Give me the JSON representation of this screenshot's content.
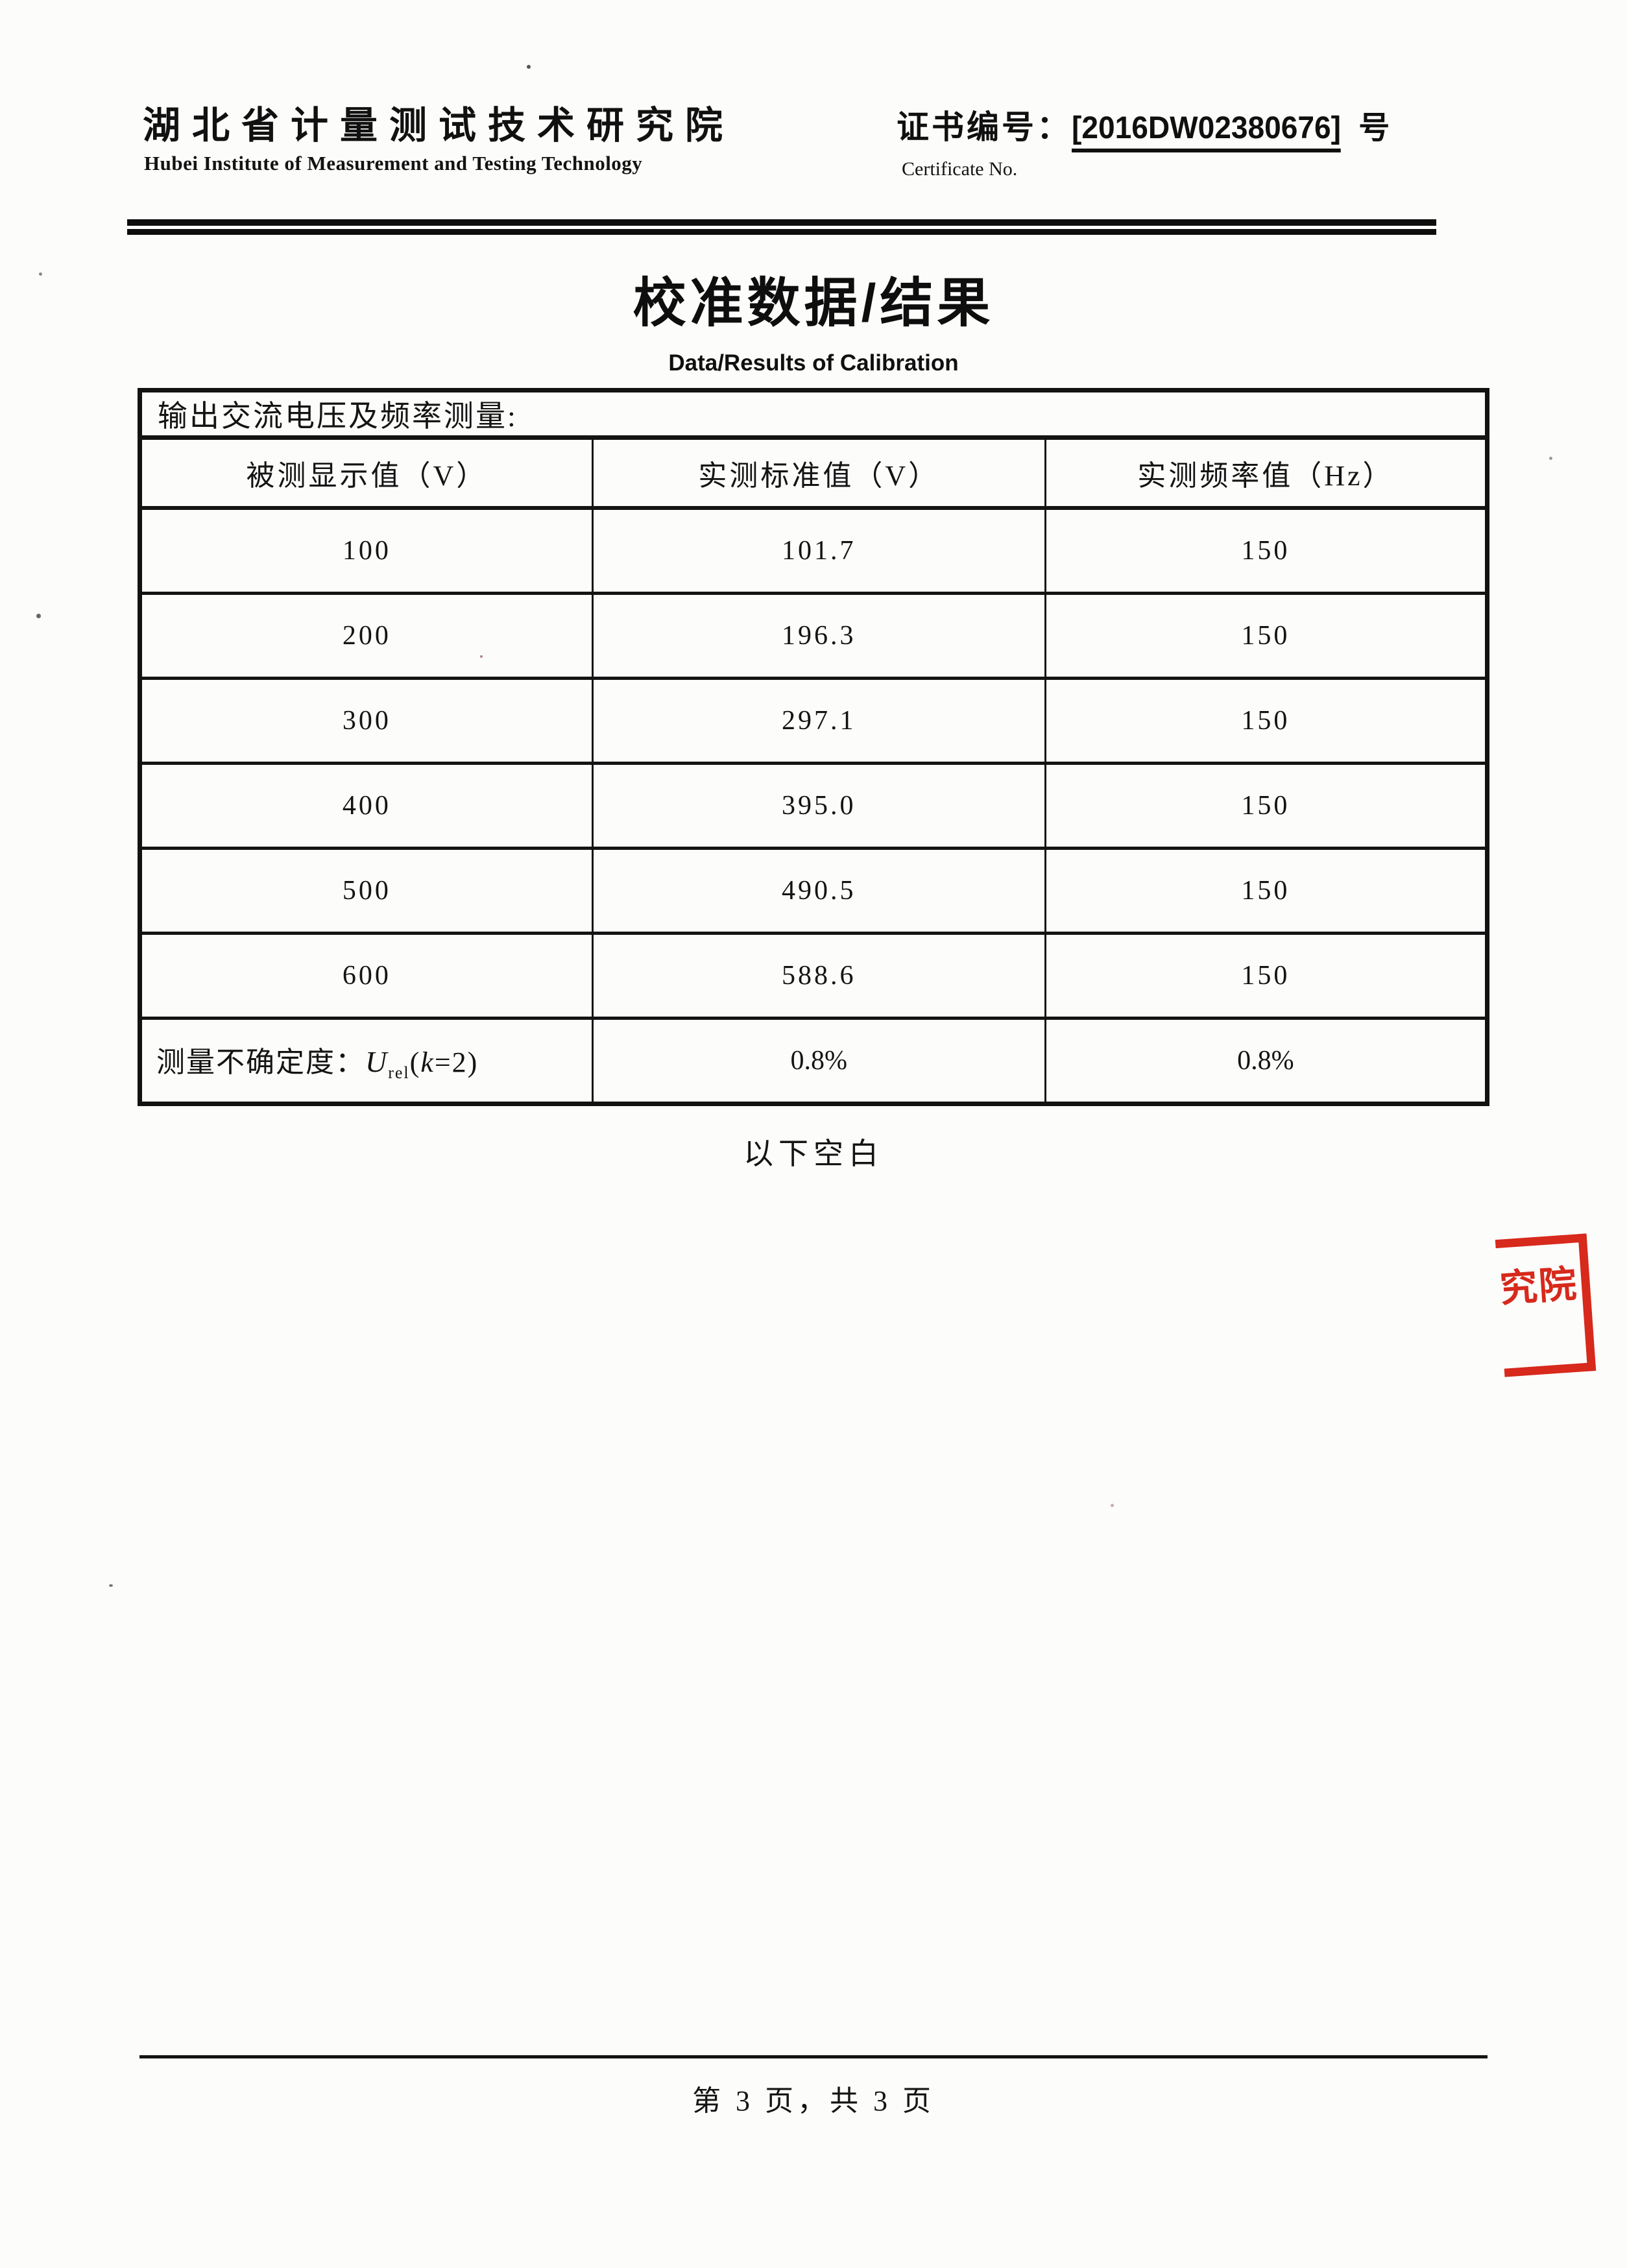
{
  "page": {
    "header": {
      "institute_cn": "湖北省计量测试技术研究院",
      "institute_en": "Hubei Institute of Measurement and Testing Technology",
      "cert_label": "证书编号：",
      "cert_no": "[2016DW02380676]",
      "cert_suffix": "号",
      "cert_label_en": "Certificate No."
    },
    "title_cn": "校准数据/结果",
    "title_en": "Data/Results of Calibration",
    "table": {
      "caption": "输出交流电压及频率测量:",
      "headers": [
        "被测显示值（V）",
        "实测标准值（V）",
        "实测频率值（Hz）"
      ],
      "rows": [
        [
          "100",
          "101.7",
          "150"
        ],
        [
          "200",
          "196.3",
          "150"
        ],
        [
          "300",
          "297.1",
          "150"
        ],
        [
          "400",
          "395.0",
          "150"
        ],
        [
          "500",
          "490.5",
          "150"
        ],
        [
          "600",
          "588.6",
          "150"
        ]
      ],
      "uncertainty": {
        "label_prefix": "测量不确定度：",
        "u_symbol": "U",
        "u_subscript": "rel",
        "paren_open": "(",
        "k_symbol": "k",
        "k_rest": "=2)",
        "values": [
          "0.8%",
          "0.8%"
        ]
      }
    },
    "blank_note": "以下空白",
    "stamp_text": "究院",
    "footer": "第 3 页，共 3 页",
    "colors": {
      "stamp_red": "#d7291c",
      "ink": "#161616"
    }
  }
}
